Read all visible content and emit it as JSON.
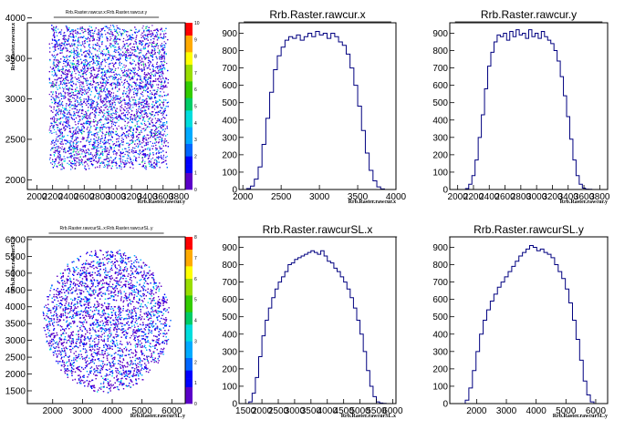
{
  "chart_data": [
    {
      "id": "p1",
      "type": "heatmap",
      "title": "Rrb.Raster.rawcur.x:Rrb.Raster.rawcur.y",
      "xlabel": "Rrb.Raster.rawcur.y",
      "ylabel": "Rrb.Raster.rawcur.x",
      "xlim": [
        1880,
        3880
      ],
      "ylim": [
        1880,
        3940
      ],
      "xticks": [
        "2000",
        "2200",
        "2400",
        "2600",
        "2800",
        "3000",
        "3200",
        "3400",
        "3600",
        "3800"
      ],
      "xtick_values": [
        2000,
        2200,
        2400,
        2600,
        2800,
        3000,
        3200,
        3400,
        3600,
        3800
      ],
      "yticks": [
        "2000",
        "2500",
        "3000",
        "3500",
        "4000"
      ],
      "ytick_values": [
        2000,
        2500,
        3000,
        3500,
        4000
      ],
      "palette_max": 10,
      "palette_ticks": [
        "0",
        "1",
        "2",
        "3",
        "4",
        "5",
        "6",
        "7",
        "8",
        "9",
        "10"
      ],
      "shape": "square",
      "x_range": [
        2150,
        3660
      ],
      "y_range": [
        2130,
        3920
      ]
    },
    {
      "id": "p2",
      "type": "bar",
      "title": "Rrb.Raster.rawcur.x",
      "xlabel": "Rrb.Raster.rawcur.x",
      "ylabel": "",
      "xlim": [
        1950,
        4000
      ],
      "ylim": [
        0,
        960
      ],
      "xticks": [
        "2000",
        "2500",
        "3000",
        "3500",
        "4000"
      ],
      "xtick_values": [
        2000,
        2500,
        3000,
        3500,
        4000
      ],
      "yticks": [
        "0",
        "100",
        "200",
        "300",
        "400",
        "500",
        "600",
        "700",
        "800",
        "900"
      ],
      "ytick_values": [
        0,
        100,
        200,
        300,
        400,
        500,
        600,
        700,
        800,
        900
      ],
      "x": [
        2075,
        2125,
        2175,
        2225,
        2275,
        2325,
        2375,
        2425,
        2475,
        2525,
        2575,
        2625,
        2675,
        2725,
        2775,
        2825,
        2875,
        2925,
        2975,
        3025,
        3075,
        3125,
        3175,
        3225,
        3275,
        3325,
        3375,
        3425,
        3475,
        3525,
        3575,
        3625,
        3675,
        3725,
        3775,
        3825
      ],
      "values": [
        5,
        20,
        60,
        130,
        260,
        410,
        560,
        690,
        770,
        820,
        860,
        880,
        870,
        890,
        860,
        880,
        900,
        880,
        910,
        890,
        900,
        870,
        900,
        880,
        850,
        830,
        780,
        700,
        600,
        480,
        340,
        210,
        110,
        50,
        15,
        3
      ]
    },
    {
      "id": "p3",
      "type": "bar",
      "title": "Rrb.Raster.rawcur.y",
      "xlabel": "Rrb.Raster.rawcur.y",
      "ylabel": "",
      "xlim": [
        1900,
        3900
      ],
      "ylim": [
        0,
        960
      ],
      "xticks": [
        "2000",
        "2200",
        "2400",
        "2600",
        "2800",
        "3000",
        "3200",
        "3400",
        "3600",
        "3800"
      ],
      "xtick_values": [
        2000,
        2200,
        2400,
        2600,
        2800,
        3000,
        3200,
        3400,
        3600,
        3800
      ],
      "yticks": [
        "0",
        "100",
        "200",
        "300",
        "400",
        "500",
        "600",
        "700",
        "800",
        "900"
      ],
      "ytick_values": [
        0,
        100,
        200,
        300,
        400,
        500,
        600,
        700,
        800,
        900
      ],
      "x": [
        2120,
        2160,
        2200,
        2240,
        2280,
        2320,
        2360,
        2400,
        2440,
        2480,
        2520,
        2560,
        2600,
        2640,
        2680,
        2720,
        2760,
        2800,
        2840,
        2880,
        2920,
        2960,
        3000,
        3040,
        3080,
        3120,
        3160,
        3200,
        3240,
        3280,
        3320,
        3360,
        3400,
        3440,
        3480,
        3520,
        3560,
        3600,
        3640,
        3680
      ],
      "values": [
        5,
        30,
        80,
        170,
        300,
        430,
        580,
        710,
        790,
        850,
        890,
        880,
        900,
        860,
        910,
        880,
        920,
        890,
        900,
        870,
        920,
        880,
        900,
        870,
        910,
        880,
        860,
        840,
        800,
        740,
        650,
        540,
        420,
        290,
        170,
        80,
        30,
        8,
        2,
        1
      ]
    },
    {
      "id": "p4",
      "type": "heatmap",
      "title": "Rrb.Raster.rawcurSL.x:Rrb.Raster.rawcurSL.y",
      "xlabel": "Rrb.Raster.rawcurSL.y",
      "ylabel": "Rrb.Raster.rawcurSL.x",
      "xlim": [
        1150,
        6450
      ],
      "ylim": [
        1120,
        6080
      ],
      "xticks": [
        "2000",
        "3000",
        "4000",
        "5000",
        "6000"
      ],
      "xtick_values": [
        2000,
        3000,
        4000,
        5000,
        6000
      ],
      "yticks": [
        "1500",
        "2000",
        "2500",
        "3000",
        "3500",
        "4000",
        "4500",
        "5000",
        "5500",
        "6000"
      ],
      "ytick_values": [
        1500,
        2000,
        2500,
        3000,
        3500,
        4000,
        4500,
        5000,
        5500,
        6000
      ],
      "palette_max": 8,
      "palette_ticks": [
        "0",
        "1",
        "2",
        "3",
        "4",
        "5",
        "6",
        "7",
        "8"
      ],
      "shape": "circle",
      "center": [
        3800,
        3600
      ],
      "radius": [
        2150,
        2150
      ]
    },
    {
      "id": "p5",
      "type": "bar",
      "title": "Rrb.Raster.rawcurSL.x",
      "xlabel": "Rrb.Raster.rawcurSL.x",
      "ylabel": "",
      "xlim": [
        1300,
        6100
      ],
      "ylim": [
        0,
        960
      ],
      "xticks": [
        "1500",
        "2000",
        "2500",
        "3000",
        "3500",
        "4000",
        "4500",
        "5000",
        "5500",
        "6000"
      ],
      "xtick_values": [
        1500,
        2000,
        2500,
        3000,
        3500,
        4000,
        4500,
        5000,
        5500,
        6000
      ],
      "yticks": [
        "0",
        "100",
        "200",
        "300",
        "400",
        "500",
        "600",
        "700",
        "800",
        "900"
      ],
      "ytick_values": [
        0,
        100,
        200,
        300,
        400,
        500,
        600,
        700,
        800,
        900
      ],
      "x": [
        1650,
        1750,
        1850,
        1950,
        2050,
        2150,
        2250,
        2350,
        2450,
        2550,
        2650,
        2750,
        2850,
        2950,
        3050,
        3150,
        3250,
        3350,
        3450,
        3550,
        3650,
        3750,
        3850,
        3950,
        4050,
        4150,
        4250,
        4350,
        4450,
        4550,
        4650,
        4750,
        4850,
        4950,
        5050,
        5150,
        5250,
        5350,
        5450,
        5550,
        5650,
        5750
      ],
      "values": [
        10,
        60,
        150,
        270,
        390,
        480,
        550,
        610,
        660,
        700,
        730,
        760,
        800,
        810,
        830,
        840,
        850,
        860,
        870,
        880,
        870,
        860,
        880,
        850,
        820,
        810,
        780,
        760,
        730,
        700,
        660,
        610,
        550,
        480,
        400,
        300,
        190,
        100,
        40,
        10,
        3,
        1
      ]
    },
    {
      "id": "p6",
      "type": "bar",
      "title": "Rrb.Raster.rawcurSL.y",
      "xlabel": "Rrb.Raster.rawcurSL.y",
      "ylabel": "",
      "xlim": [
        1100,
        6400
      ],
      "ylim": [
        0,
        960
      ],
      "xticks": [
        "2000",
        "3000",
        "4000",
        "5000",
        "6000"
      ],
      "xtick_values": [
        2000,
        3000,
        4000,
        5000,
        6000
      ],
      "yticks": [
        "0",
        "100",
        "200",
        "300",
        "400",
        "500",
        "600",
        "700",
        "800",
        "900"
      ],
      "ytick_values": [
        0,
        100,
        200,
        300,
        400,
        500,
        600,
        700,
        800,
        900
      ],
      "x": [
        1680,
        1800,
        1920,
        2040,
        2160,
        2280,
        2400,
        2520,
        2640,
        2760,
        2880,
        3000,
        3120,
        3240,
        3360,
        3480,
        3600,
        3720,
        3840,
        3960,
        4080,
        4200,
        4320,
        4440,
        4560,
        4680,
        4800,
        4920,
        5040,
        5160,
        5280,
        5400,
        5520,
        5640,
        5760,
        5880
      ],
      "values": [
        20,
        90,
        190,
        300,
        400,
        480,
        540,
        590,
        630,
        670,
        700,
        730,
        760,
        790,
        820,
        850,
        870,
        890,
        910,
        900,
        880,
        890,
        870,
        860,
        840,
        800,
        760,
        720,
        660,
        580,
        480,
        370,
        250,
        130,
        50,
        10
      ]
    }
  ]
}
